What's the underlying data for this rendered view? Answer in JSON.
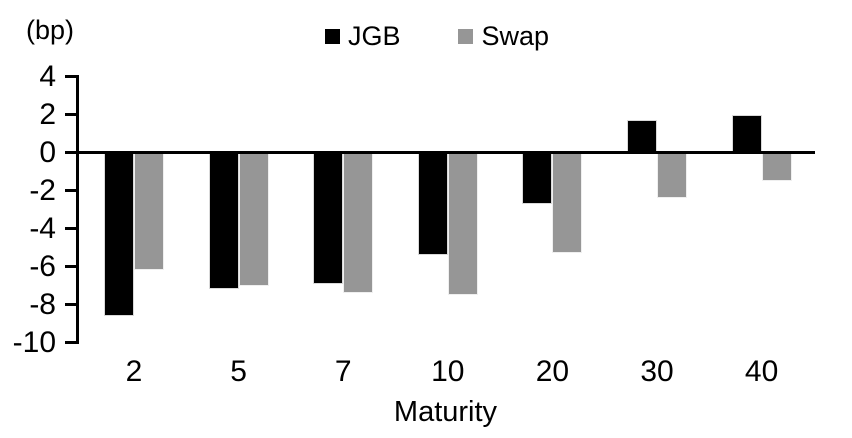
{
  "chart_data": {
    "type": "bar",
    "title": "",
    "unit_label": "(bp)",
    "xlabel": "Maturity",
    "categories": [
      "2",
      "5",
      "7",
      "10",
      "20",
      "30",
      "40"
    ],
    "series": [
      {
        "name": "JGB",
        "color": "#000000",
        "values": [
          -8.6,
          -7.2,
          -6.9,
          -5.4,
          -2.7,
          1.7,
          2.0
        ]
      },
      {
        "name": "Swap",
        "color": "#969696",
        "values": [
          -6.2,
          -7.0,
          -7.4,
          -7.5,
          -5.3,
          -2.4,
          -1.5
        ]
      }
    ],
    "ylim": [
      -10,
      4
    ],
    "yticks": [
      4,
      2,
      0,
      -2,
      -4,
      -6,
      -8,
      -10
    ],
    "grid": false,
    "legend_position": "top-center",
    "axis_color": "#000000",
    "background_color": "#ffffff"
  }
}
